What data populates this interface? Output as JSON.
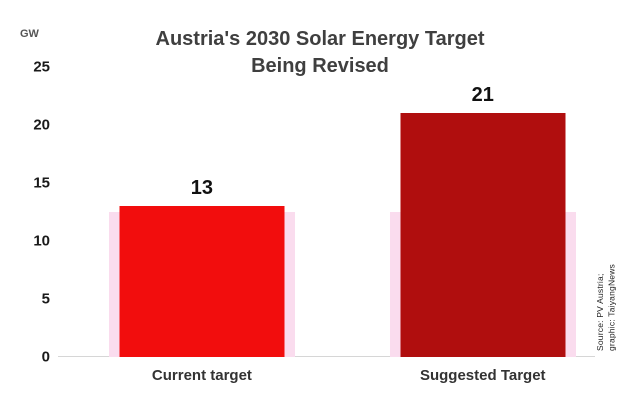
{
  "title": {
    "line1": "Austria's 2030 Solar Energy Target",
    "line2": "Being Revised"
  },
  "source": {
    "line1": "Source: PV Austria;",
    "line2": "graphic: TaiyangNews"
  },
  "chart_data": {
    "type": "bar",
    "title": "Austria's 2030 Solar Energy Target Being Revised",
    "categories": [
      "Current target",
      "Suggested Target"
    ],
    "values": [
      13,
      21
    ],
    "data_labels": [
      "13",
      "21"
    ],
    "bar_colors": [
      "#f20d0d",
      "#b00e0e"
    ],
    "shadow_band": {
      "values": [
        12.5,
        12.5
      ],
      "color": "#fadcee"
    },
    "xlabel": "",
    "ylabel": "GW",
    "ylim": [
      0,
      25
    ],
    "yticks": [
      0,
      5,
      10,
      15,
      20,
      25
    ],
    "grid": false,
    "legend": false
  }
}
